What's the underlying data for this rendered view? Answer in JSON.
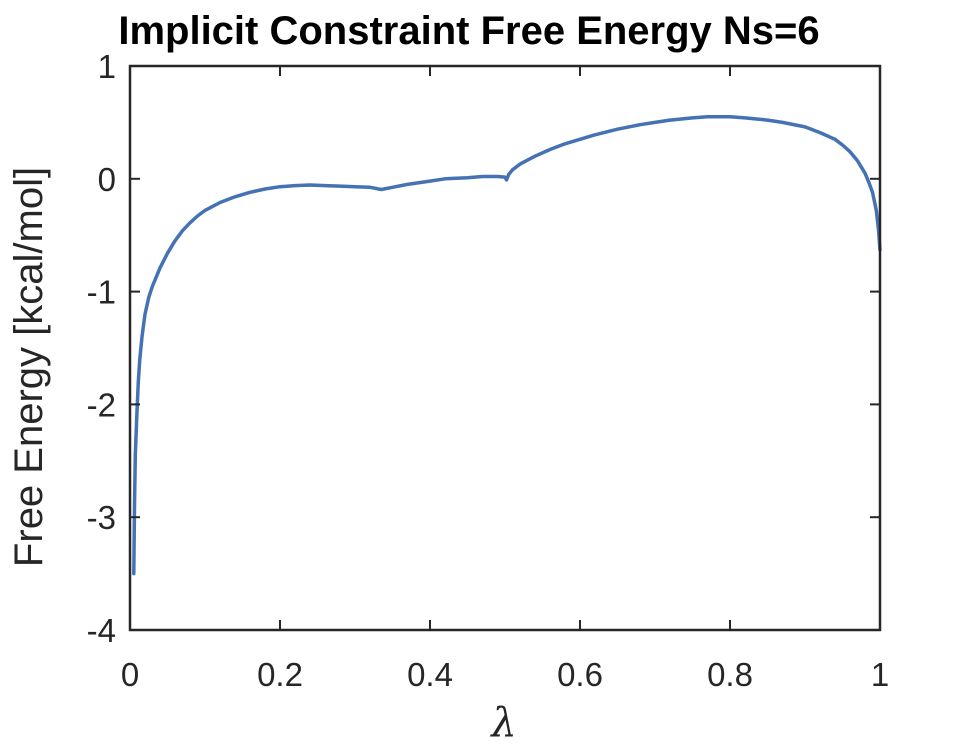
{
  "chart_data": {
    "type": "line",
    "title": "Implicit Constraint Free Energy Ns=6",
    "xlabel": "λ",
    "ylabel": "Free Energy [kcal/mol]",
    "xlim": [
      0,
      1
    ],
    "ylim": [
      -4,
      1
    ],
    "xticks": [
      0,
      0.2,
      0.4,
      0.6,
      0.8,
      1
    ],
    "xtick_labels": [
      "0",
      "0.2",
      "0.4",
      "0.6",
      "0.8",
      "1"
    ],
    "yticks": [
      -4,
      -3,
      -2,
      -1,
      0,
      1
    ],
    "ytick_labels": [
      "-4",
      "-3",
      "-2",
      "-1",
      "0",
      "1"
    ],
    "grid": false,
    "colors": {
      "line": "#4472b4",
      "axes": "#262626"
    },
    "series": [
      {
        "x": [
          0.005,
          0.006,
          0.007,
          0.009,
          0.011,
          0.013,
          0.016,
          0.02,
          0.025,
          0.03,
          0.035,
          0.04,
          0.05,
          0.06,
          0.07,
          0.08,
          0.09,
          0.1,
          0.12,
          0.14,
          0.16,
          0.18,
          0.2,
          0.22,
          0.24,
          0.26,
          0.28,
          0.3,
          0.32,
          0.335,
          0.35,
          0.37,
          0.4,
          0.42,
          0.45,
          0.47,
          0.49,
          0.5,
          0.502,
          0.505,
          0.51,
          0.52,
          0.54,
          0.56,
          0.58,
          0.6,
          0.62,
          0.65,
          0.68,
          0.7,
          0.72,
          0.75,
          0.77,
          0.8,
          0.82,
          0.85,
          0.87,
          0.9,
          0.92,
          0.94,
          0.95,
          0.96,
          0.97,
          0.98,
          0.985,
          0.99,
          0.995,
          0.998,
          1.0
        ],
        "y": [
          -3.5,
          -2.9,
          -2.45,
          -2.1,
          -1.8,
          -1.6,
          -1.4,
          -1.2,
          -1.05,
          -0.95,
          -0.87,
          -0.79,
          -0.66,
          -0.55,
          -0.46,
          -0.39,
          -0.33,
          -0.28,
          -0.21,
          -0.16,
          -0.12,
          -0.09,
          -0.07,
          -0.06,
          -0.055,
          -0.06,
          -0.065,
          -0.07,
          -0.075,
          -0.095,
          -0.075,
          -0.05,
          -0.02,
          0.0,
          0.01,
          0.02,
          0.02,
          0.015,
          -0.01,
          0.04,
          0.08,
          0.13,
          0.2,
          0.26,
          0.31,
          0.35,
          0.39,
          0.44,
          0.48,
          0.5,
          0.52,
          0.54,
          0.55,
          0.55,
          0.54,
          0.52,
          0.5,
          0.46,
          0.41,
          0.35,
          0.3,
          0.24,
          0.16,
          0.05,
          -0.03,
          -0.12,
          -0.28,
          -0.45,
          -0.63
        ]
      }
    ]
  }
}
